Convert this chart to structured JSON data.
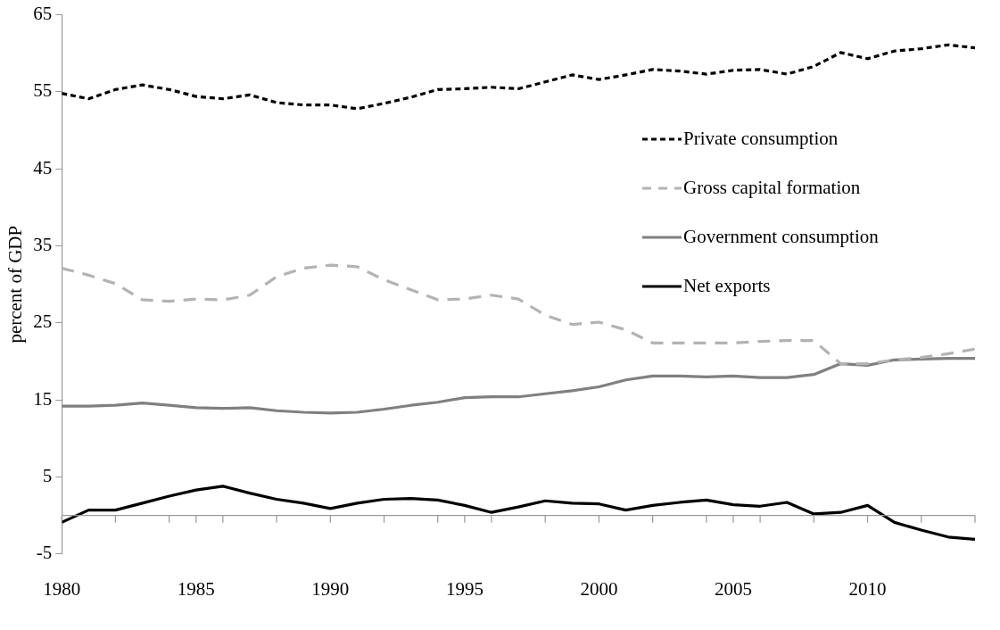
{
  "chart_data": {
    "type": "line",
    "ylabel": "percent of GDP",
    "x": [
      1980,
      1981,
      1982,
      1983,
      1984,
      1985,
      1986,
      1987,
      1988,
      1989,
      1990,
      1991,
      1992,
      1993,
      1994,
      1995,
      1996,
      1997,
      1998,
      1999,
      2000,
      2001,
      2002,
      2003,
      2004,
      2005,
      2006,
      2007,
      2008,
      2009,
      2010,
      2011,
      2012,
      2013,
      2014
    ],
    "xlim": [
      1980,
      2014
    ],
    "xticks": [
      1980,
      {
        "value": 1982,
        "label": null
      },
      {
        "value": 1984,
        "label": null
      },
      1985,
      {
        "value": 1986,
        "label": null
      },
      {
        "value": 1988,
        "label": null
      },
      1990,
      {
        "value": 1992,
        "label": null
      },
      {
        "value": 1994,
        "label": null
      },
      1995,
      {
        "value": 1996,
        "label": null
      },
      {
        "value": 1998,
        "label": null
      },
      2000,
      {
        "value": 2002,
        "label": null
      },
      {
        "value": 2004,
        "label": null
      },
      2005,
      {
        "value": 2006,
        "label": null
      },
      {
        "value": 2008,
        "label": null
      },
      2010,
      {
        "value": 2012,
        "label": null
      },
      {
        "value": 2014,
        "label": null
      }
    ],
    "ylim": [
      -5,
      65
    ],
    "yticks": [
      -5,
      5,
      15,
      25,
      35,
      45,
      55,
      65
    ],
    "grid": false,
    "legend": "right",
    "marker": "none",
    "series": [
      {
        "name": "Private consumption",
        "color": "#000000",
        "line_style": "dotted",
        "values": [
          54.8,
          54.1,
          55.3,
          55.9,
          55.3,
          54.4,
          54.1,
          54.6,
          53.6,
          53.3,
          53.3,
          52.8,
          53.5,
          54.3,
          55.3,
          55.4,
          55.6,
          55.4,
          56.3,
          57.2,
          56.6,
          57.2,
          57.9,
          57.7,
          57.3,
          57.8,
          57.9,
          57.3,
          58.3,
          60.1,
          59.3,
          60.3,
          60.6,
          61.1,
          60.7
        ]
      },
      {
        "name": "Gross capital formation",
        "color": "#b3b3b3",
        "line_style": "dashed",
        "values": [
          32.1,
          31.2,
          30.1,
          28.0,
          27.8,
          28.1,
          28.0,
          28.6,
          31.0,
          32.1,
          32.5,
          32.3,
          30.6,
          29.3,
          28.0,
          28.1,
          28.6,
          28.1,
          26.0,
          24.8,
          25.1,
          24.1,
          22.4,
          22.4,
          22.4,
          22.4,
          22.6,
          22.7,
          22.7,
          19.7,
          19.7,
          20.2,
          20.5,
          21.0,
          21.6
        ]
      },
      {
        "name": "Government consumption",
        "color": "#808080",
        "line_style": "solid",
        "values": [
          14.2,
          14.2,
          14.3,
          14.6,
          14.3,
          14.0,
          13.9,
          14.0,
          13.6,
          13.4,
          13.3,
          13.4,
          13.8,
          14.3,
          14.7,
          15.3,
          15.4,
          15.4,
          15.8,
          16.2,
          16.7,
          17.6,
          18.1,
          18.1,
          18.0,
          18.1,
          17.9,
          17.9,
          18.3,
          19.7,
          19.5,
          20.2,
          20.3,
          20.4,
          20.4
        ]
      },
      {
        "name": "Net exports",
        "color": "#000000",
        "line_style": "solid",
        "values": [
          -0.9,
          0.7,
          0.7,
          1.6,
          2.5,
          3.3,
          3.8,
          2.9,
          2.1,
          1.6,
          0.9,
          1.6,
          2.1,
          2.2,
          2.0,
          1.3,
          0.4,
          1.1,
          1.9,
          1.6,
          1.5,
          0.7,
          1.3,
          1.7,
          2.0,
          1.4,
          1.2,
          1.7,
          0.2,
          0.4,
          1.3,
          -0.9,
          -1.9,
          -2.8,
          -3.1
        ]
      }
    ]
  }
}
